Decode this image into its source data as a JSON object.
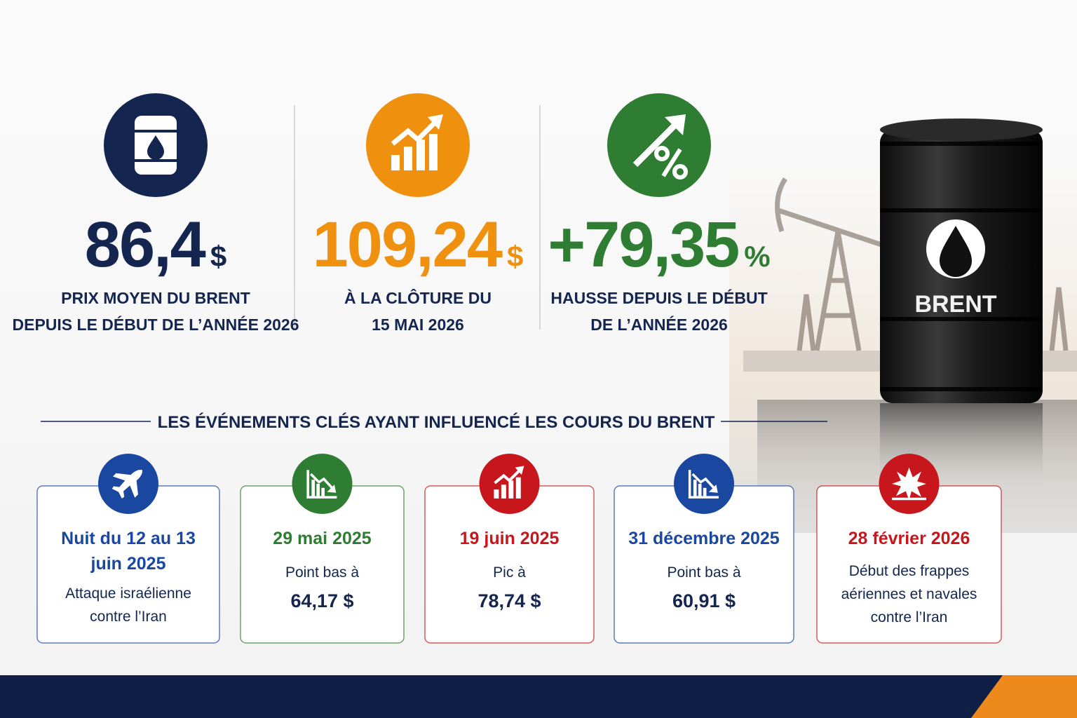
{
  "stats": [
    {
      "value": "86,4",
      "unit": "$",
      "label": [
        "PRIX MOYEN DU BRENT",
        "DEPUIS LE DÉBUT DE L’ANNÉE 2026"
      ]
    },
    {
      "value": "109,24",
      "unit": "$",
      "label": [
        "À LA CLÔTURE DU",
        "15 MAI 2026"
      ]
    },
    {
      "value": "+79,35",
      "unit": "%",
      "label": [
        "HAUSSE DEPUIS LE DÉBUT",
        "DE L’ANNÉE 2026"
      ]
    }
  ],
  "section_title": "LES ÉVÉNEMENTS CLÉS AYANT INFLUENCÉ LES COURS DU BRENT",
  "events": [
    {
      "date": [
        "Nuit du 12 au 13",
        "juin 2025"
      ],
      "text": [
        "Attaque israélienne",
        "contre l’Iran"
      ]
    },
    {
      "date": [
        "29 mai 2025"
      ],
      "text": [
        "Point bas à",
        "64,17 $"
      ]
    },
    {
      "date": [
        "19 juin 2025"
      ],
      "text": [
        "Pic à",
        "78,74 $"
      ]
    },
    {
      "date": [
        "31 décembre 2025"
      ],
      "text": [
        "Point bas à",
        "60,91 $"
      ]
    },
    {
      "date": [
        "28 février 2026"
      ],
      "text": [
        "Début des frappes",
        "aériennes et navales",
        "contre l’Iran"
      ]
    }
  ],
  "barrel_label": "BRENT"
}
